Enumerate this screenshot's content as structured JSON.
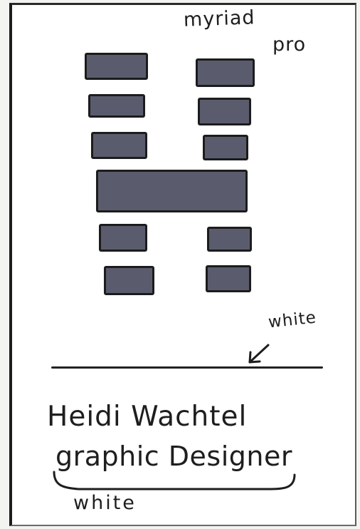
{
  "annotations": {
    "font_line1": "myriad",
    "font_line2": "pro",
    "white_top": "white",
    "white_bottom": "white"
  },
  "card": {
    "name": "Heidi Wachtel",
    "title": "graphic Designer"
  },
  "colors": {
    "block_fill": "#5a5c6e",
    "ink": "#1e1e1e",
    "paper": "#ffffff"
  },
  "icons": {
    "arrow": "arrow-down-left-icon",
    "brace": "curly-brace-icon"
  }
}
